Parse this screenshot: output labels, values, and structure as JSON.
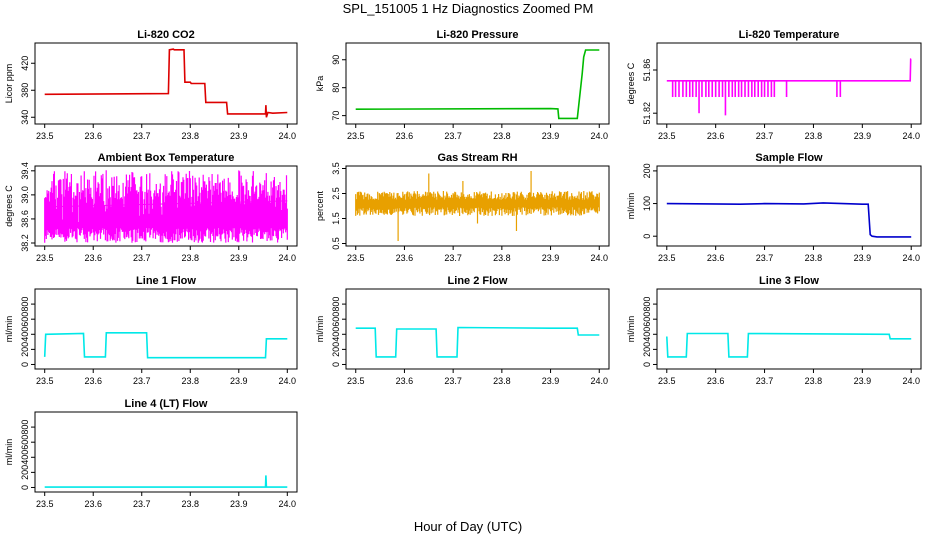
{
  "figure": {
    "title": "SPL_151005  1 Hz Diagnostics Zoomed PM",
    "xlabel": "Hour of Day (UTC)"
  },
  "chart_data": [
    {
      "type": "line",
      "id": "co2",
      "title": "Li-820 CO2",
      "ylabel": "Licor ppm",
      "color": "#dd0000",
      "xlim": [
        23.48,
        24.02
      ],
      "ylim": [
        330,
        450
      ],
      "xticks": [
        23.5,
        23.6,
        23.7,
        23.8,
        23.9,
        24.0
      ],
      "xtick_labels": [
        "23.5",
        "23.6",
        "23.7",
        "23.8",
        "23.9",
        "24.0"
      ],
      "yticks": [
        340,
        380,
        420
      ],
      "ytick_labels": [
        "340",
        "380",
        "420"
      ],
      "series": [
        {
          "name": "CO2",
          "x": [
            23.5,
            23.755,
            23.757,
            23.765,
            23.767,
            23.787,
            23.789,
            23.8,
            23.802,
            23.83,
            23.832,
            23.875,
            23.877,
            23.955,
            23.956,
            23.957,
            23.96,
            23.97,
            24.0
          ],
          "y": [
            374,
            375,
            440,
            441,
            440,
            440,
            392,
            392,
            390,
            390,
            362,
            362,
            345,
            345,
            358,
            340,
            347,
            346,
            347
          ]
        }
      ]
    },
    {
      "type": "line",
      "id": "pressure",
      "title": "Li-820 Pressure",
      "ylabel": "kPa",
      "color": "#00bb00",
      "xlim": [
        23.48,
        24.02
      ],
      "ylim": [
        67,
        96
      ],
      "xticks": [
        23.5,
        23.6,
        23.7,
        23.8,
        23.9,
        24.0
      ],
      "xtick_labels": [
        "23.5",
        "23.6",
        "23.7",
        "23.8",
        "23.9",
        "24.0"
      ],
      "yticks": [
        70,
        80,
        90
      ],
      "ytick_labels": [
        "70",
        "80",
        "90"
      ],
      "series": [
        {
          "name": "Pressure",
          "x": [
            23.5,
            23.9,
            23.915,
            23.917,
            23.955,
            23.965,
            23.968,
            23.972,
            24.0
          ],
          "y": [
            72.3,
            72.5,
            72.4,
            69,
            69,
            85,
            91,
            93.5,
            93.5
          ]
        }
      ]
    },
    {
      "type": "line",
      "id": "licor-temp",
      "title": "Li-820 Temperature",
      "ylabel": "degrees C",
      "color": "#ff00ff",
      "xlim": [
        23.48,
        24.02
      ],
      "ylim": [
        51.81,
        51.885
      ],
      "xticks": [
        23.5,
        23.6,
        23.7,
        23.8,
        23.9,
        24.0
      ],
      "xtick_labels": [
        "23.5",
        "23.6",
        "23.7",
        "23.8",
        "23.9",
        "24.0"
      ],
      "yticks": [
        51.82,
        51.86
      ],
      "ytick_labels": [
        "51.82",
        "51.86"
      ],
      "series": [
        {
          "name": "Temperature",
          "x": [
            23.5,
            23.998,
            23.999,
            24.0
          ],
          "y": [
            51.85,
            51.85,
            51.87,
            51.87
          ]
        }
      ],
      "dips": {
        "x": [
          23.512,
          23.518,
          23.525,
          23.533,
          23.54,
          23.547,
          23.553,
          23.56,
          23.566,
          23.572,
          23.58,
          23.586,
          23.593,
          23.6,
          23.607,
          23.614,
          23.62,
          23.627,
          23.634,
          23.64,
          23.647,
          23.653,
          23.66,
          23.667,
          23.674,
          23.68,
          23.687,
          23.694,
          23.7,
          23.707,
          23.714,
          23.72,
          23.745,
          23.848,
          23.855
        ],
        "y": [
          51.835,
          51.835,
          51.835,
          51.835,
          51.835,
          51.835,
          51.835,
          51.835,
          51.82,
          51.835,
          51.835,
          51.835,
          51.835,
          51.835,
          51.835,
          51.835,
          51.818,
          51.835,
          51.835,
          51.835,
          51.835,
          51.835,
          51.835,
          51.835,
          51.835,
          51.835,
          51.835,
          51.835,
          51.835,
          51.835,
          51.835,
          51.835,
          51.835,
          51.835,
          51.835
        ]
      }
    },
    {
      "type": "line",
      "id": "box-temp",
      "title": "Ambient Box Temperature",
      "ylabel": "degrees C",
      "color": "#ff00ff",
      "xlim": [
        23.48,
        24.02
      ],
      "ylim": [
        38.15,
        39.48
      ],
      "xticks": [
        23.5,
        23.6,
        23.7,
        23.8,
        23.9,
        24.0
      ],
      "xtick_labels": [
        "23.5",
        "23.6",
        "23.7",
        "23.8",
        "23.9",
        "24.0"
      ],
      "yticks": [
        38.2,
        38.6,
        39.0,
        39.4
      ],
      "ytick_labels": [
        "38.2",
        "38.6",
        "39.0",
        "39.4"
      ],
      "series": [
        {
          "name": "Box Temperature",
          "x": [
            23.5,
            24.0
          ],
          "y": [
            38.8,
            38.9
          ]
        }
      ],
      "noise": {
        "low": 38.2,
        "high": 39.42,
        "mode": "pair"
      }
    },
    {
      "type": "line",
      "id": "rh",
      "title": "Gas Stream RH",
      "ylabel": "percent",
      "color": "#e8a000",
      "xlim": [
        23.48,
        24.02
      ],
      "ylim": [
        0.4,
        3.6
      ],
      "xticks": [
        23.5,
        23.6,
        23.7,
        23.8,
        23.9,
        24.0
      ],
      "xtick_labels": [
        "23.5",
        "23.6",
        "23.7",
        "23.8",
        "23.9",
        "24.0"
      ],
      "yticks": [
        0.5,
        1.5,
        2.5,
        3.5
      ],
      "ytick_labels": [
        "0.5",
        "1.5",
        "2.5",
        "3.5"
      ],
      "series": [
        {
          "name": "RH",
          "x": [
            23.5,
            24.0
          ],
          "y": [
            2.1,
            2.1
          ]
        }
      ],
      "noise": {
        "low": 1.6,
        "high": 2.6,
        "mode": "band"
      },
      "spikes": {
        "x": [
          23.587,
          23.65,
          23.72,
          23.86,
          23.75,
          23.83
        ],
        "y": [
          0.6,
          3.3,
          3.0,
          3.4,
          1.3,
          1.0
        ]
      }
    },
    {
      "type": "line",
      "id": "sample-flow",
      "title": "Sample Flow",
      "ylabel": "ml/min",
      "color": "#0000cc",
      "xlim": [
        23.48,
        24.02
      ],
      "ylim": [
        -30,
        215
      ],
      "xticks": [
        23.5,
        23.6,
        23.7,
        23.8,
        23.9,
        24.0
      ],
      "xtick_labels": [
        "23.5",
        "23.6",
        "23.7",
        "23.8",
        "23.9",
        "24.0"
      ],
      "yticks": [
        0,
        100,
        200
      ],
      "ytick_labels": [
        "0",
        "100",
        "200"
      ],
      "series": [
        {
          "name": "Sample Flow",
          "x": [
            23.5,
            23.65,
            23.7,
            23.78,
            23.82,
            23.9,
            23.912,
            23.916,
            23.92,
            23.93,
            24.0
          ],
          "y": [
            100,
            98,
            100,
            99,
            102,
            98,
            98,
            5,
            0,
            -2,
            -2
          ]
        }
      ]
    },
    {
      "type": "line",
      "id": "line1-flow",
      "title": "Line 1 Flow",
      "ylabel": "ml/min",
      "color": "#00e8e8",
      "xlim": [
        23.48,
        24.02
      ],
      "ylim": [
        -60,
        1000
      ],
      "xticks": [
        23.5,
        23.6,
        23.7,
        23.8,
        23.9,
        24.0
      ],
      "xtick_labels": [
        "23.5",
        "23.6",
        "23.7",
        "23.8",
        "23.9",
        "24.0"
      ],
      "yticks": [
        0,
        200,
        400,
        600,
        800
      ],
      "ytick_labels": [
        "0",
        "200",
        "400",
        "600",
        "800"
      ],
      "series": [
        {
          "name": "Line 1",
          "x": [
            23.5,
            23.502,
            23.58,
            23.582,
            23.625,
            23.627,
            23.71,
            23.712,
            23.955,
            23.957,
            24.0
          ],
          "y": [
            100,
            400,
            410,
            100,
            100,
            420,
            420,
            90,
            90,
            340,
            340
          ]
        }
      ]
    },
    {
      "type": "line",
      "id": "line2-flow",
      "title": "Line 2 Flow",
      "ylabel": "ml/min",
      "color": "#00e8e8",
      "xlim": [
        23.48,
        24.02
      ],
      "ylim": [
        -60,
        1000
      ],
      "xticks": [
        23.5,
        23.6,
        23.7,
        23.8,
        23.9,
        24.0
      ],
      "xtick_labels": [
        "23.5",
        "23.6",
        "23.7",
        "23.8",
        "23.9",
        "24.0"
      ],
      "yticks": [
        0,
        200,
        400,
        600,
        800
      ],
      "ytick_labels": [
        "0",
        "200",
        "400",
        "600",
        "800"
      ],
      "series": [
        {
          "name": "Line 2",
          "x": [
            23.5,
            23.54,
            23.542,
            23.582,
            23.584,
            23.665,
            23.667,
            23.708,
            23.71,
            23.9,
            23.955,
            23.957,
            24.0
          ],
          "y": [
            480,
            480,
            100,
            100,
            470,
            470,
            100,
            100,
            490,
            480,
            480,
            390,
            390
          ]
        }
      ]
    },
    {
      "type": "line",
      "id": "line3-flow",
      "title": "Line 3 Flow",
      "ylabel": "ml/min",
      "color": "#00e8e8",
      "xlim": [
        23.48,
        24.02
      ],
      "ylim": [
        -60,
        1000
      ],
      "xticks": [
        23.5,
        23.6,
        23.7,
        23.8,
        23.9,
        24.0
      ],
      "xtick_labels": [
        "23.5",
        "23.6",
        "23.7",
        "23.8",
        "23.9",
        "24.0"
      ],
      "yticks": [
        0,
        200,
        400,
        600,
        800
      ],
      "ytick_labels": [
        "0",
        "200",
        "400",
        "600",
        "800"
      ],
      "series": [
        {
          "name": "Line 3",
          "x": [
            23.5,
            23.502,
            23.54,
            23.542,
            23.625,
            23.627,
            23.665,
            23.667,
            23.955,
            23.957,
            24.0
          ],
          "y": [
            370,
            100,
            100,
            410,
            410,
            100,
            100,
            410,
            400,
            340,
            340
          ]
        }
      ]
    },
    {
      "type": "line",
      "id": "line4-flow",
      "title": "Line 4 (LT) Flow",
      "ylabel": "ml/min",
      "color": "#00e8e8",
      "xlim": [
        23.48,
        24.02
      ],
      "ylim": [
        -60,
        1000
      ],
      "xticks": [
        23.5,
        23.6,
        23.7,
        23.8,
        23.9,
        24.0
      ],
      "xtick_labels": [
        "23.5",
        "23.6",
        "23.7",
        "23.8",
        "23.9",
        "24.0"
      ],
      "yticks": [
        0,
        200,
        400,
        600,
        800
      ],
      "ytick_labels": [
        "0",
        "200",
        "400",
        "600",
        "800"
      ],
      "series": [
        {
          "name": "Line 4",
          "x": [
            23.5,
            23.955,
            23.956,
            23.957,
            24.0
          ],
          "y": [
            5,
            5,
            160,
            5,
            5
          ]
        }
      ]
    }
  ]
}
